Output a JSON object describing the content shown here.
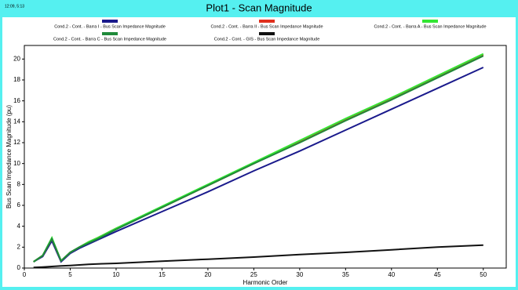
{
  "chart_data": {
    "type": "line",
    "timestamp": "12:09, 5:13",
    "title": "Plot1 - Scan Magnitude",
    "xlabel": "Harmonic Order",
    "ylabel": "Bus Scan Impedance Magnitude (pu)",
    "x": [
      1,
      2,
      3,
      4,
      5,
      6,
      7,
      8,
      10,
      15,
      20,
      25,
      30,
      35,
      40,
      45,
      50
    ],
    "series": [
      {
        "name": "Cond.2 - Cont. - Barra I - Bus Scan Impedance Magnitude",
        "color": "#1a1a8c",
        "values": [
          0.6,
          1.1,
          2.6,
          0.6,
          1.4,
          1.9,
          2.3,
          2.7,
          3.5,
          5.4,
          7.3,
          9.3,
          11.2,
          13.2,
          15.2,
          17.2,
          19.2
        ]
      },
      {
        "name": "Cond.2 - Cont. - Barra II - Bus Scan Impedance Magnitude",
        "color": "#e0301e",
        "values": [
          0.6,
          1.2,
          2.8,
          0.7,
          1.5,
          2.0,
          2.5,
          2.9,
          3.8,
          5.8,
          7.9,
          10.0,
          12.1,
          14.2,
          16.2,
          18.3,
          20.4
        ]
      },
      {
        "name": "Cond.2 - Cont. - Barra A - Bus Scan Impedance Magnitude",
        "color": "#33e633",
        "values": [
          0.6,
          1.2,
          2.9,
          0.7,
          1.5,
          2.0,
          2.5,
          2.9,
          3.8,
          5.9,
          8.0,
          10.1,
          12.2,
          14.3,
          16.3,
          18.4,
          20.5
        ]
      },
      {
        "name": "Cond.2 - Cont. - Barra C - Bus Scan Impedance Magnitude",
        "color": "#1f8a3a",
        "values": [
          0.6,
          1.2,
          2.8,
          0.7,
          1.5,
          2.0,
          2.4,
          2.8,
          3.7,
          5.8,
          7.9,
          10.0,
          12.0,
          14.1,
          16.1,
          18.2,
          20.3
        ]
      },
      {
        "name": "Cond.2 - Cont. - GIS - Bus Scan Impedance Magnitude",
        "color": "#111111",
        "values": [
          0.05,
          0.1,
          0.15,
          0.2,
          0.25,
          0.3,
          0.35,
          0.4,
          0.45,
          0.65,
          0.85,
          1.05,
          1.3,
          1.5,
          1.75,
          2.0,
          2.2
        ]
      }
    ],
    "xlim": [
      0,
      52.5
    ],
    "xticks": [
      0,
      5,
      10,
      15,
      20,
      25,
      30,
      35,
      40,
      45,
      50
    ],
    "ylim": [
      0,
      21.3
    ],
    "yticks": [
      0,
      2,
      4,
      6,
      8,
      10,
      12,
      14,
      16,
      18,
      20
    ],
    "grid": false
  }
}
